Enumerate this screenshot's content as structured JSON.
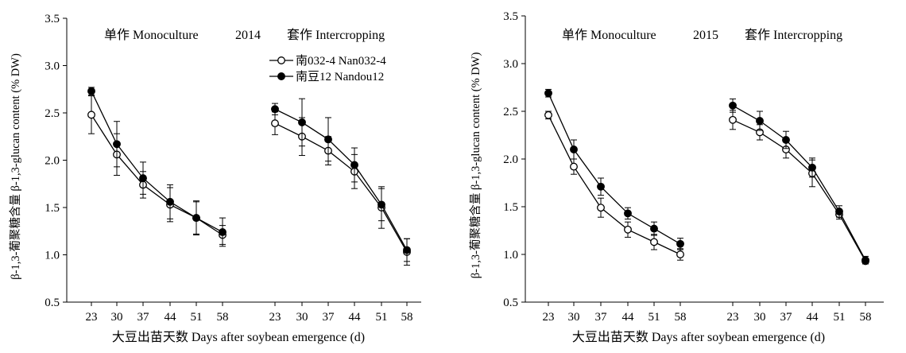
{
  "chart_data": [
    {
      "type": "line",
      "year": "2014",
      "ylabel": "β-1,3-葡聚糖含量 β-1,3-glucan content (% DW)",
      "xlabel": "大豆出苗天数 Days after soybean emergence (d)",
      "mono_label": "单作 Monoculture",
      "inter_label": "套作 Intercropping",
      "ylim": [
        0.5,
        3.5
      ],
      "yticks": [
        "0.5",
        "1.0",
        "1.5",
        "2.0",
        "2.5",
        "3.0",
        "3.5"
      ],
      "categories": [
        "23",
        "30",
        "37",
        "44",
        "51",
        "58"
      ],
      "legend": {
        "show": true,
        "position": "top-center"
      },
      "series": [
        {
          "name": "南032-4  Nan032-4",
          "marker": "open",
          "monoculture": {
            "values": [
              2.48,
              2.06,
              1.74,
              1.53,
              1.39,
              1.21
            ],
            "errors": [
              0.2,
              0.22,
              0.14,
              0.18,
              0.17,
              0.1
            ]
          },
          "intercropping": {
            "values": [
              2.39,
              2.25,
              2.1,
              1.88,
              1.5,
              1.03
            ],
            "errors": [
              0.12,
              0.2,
              0.15,
              0.18,
              0.22,
              0.14
            ]
          }
        },
        {
          "name": "南豆12  Nandou12",
          "marker": "filled",
          "monoculture": {
            "values": [
              2.73,
              2.17,
              1.81,
              1.56,
              1.39,
              1.24
            ],
            "errors": [
              0.04,
              0.24,
              0.17,
              0.18,
              0.18,
              0.15
            ]
          },
          "intercropping": {
            "values": [
              2.54,
              2.4,
              2.22,
              1.95,
              1.53,
              1.05
            ],
            "errors": [
              0.06,
              0.25,
              0.23,
              0.18,
              0.17,
              0.12
            ]
          }
        }
      ]
    },
    {
      "type": "line",
      "year": "2015",
      "ylabel": "β-1,3-葡聚糖含量 β-1,3-glucan content (% DW)",
      "xlabel": "大豆出苗天数 Days after soybean emergence (d)",
      "mono_label": "单作 Monoculture",
      "inter_label": "套作 Intercropping",
      "ylim": [
        0.5,
        3.5
      ],
      "yticks": [
        "0.5",
        "1.0",
        "1.5",
        "2.0",
        "2.5",
        "3.0",
        "3.5"
      ],
      "categories": [
        "23",
        "30",
        "37",
        "44",
        "51",
        "58"
      ],
      "legend": {
        "show": false
      },
      "series": [
        {
          "name": "南032-4  Nan032-4",
          "marker": "open",
          "monoculture": {
            "values": [
              2.46,
              1.92,
              1.49,
              1.26,
              1.13,
              1.0
            ],
            "errors": [
              0.04,
              0.08,
              0.1,
              0.08,
              0.08,
              0.06
            ]
          },
          "intercropping": {
            "values": [
              2.41,
              2.28,
              2.1,
              1.85,
              1.42,
              0.93
            ],
            "errors": [
              0.1,
              0.08,
              0.09,
              0.14,
              0.05,
              0.03
            ]
          }
        },
        {
          "name": "南豆12  Nandou12",
          "marker": "filled",
          "monoculture": {
            "values": [
              2.69,
              2.1,
              1.71,
              1.43,
              1.27,
              1.11
            ],
            "errors": [
              0.04,
              0.1,
              0.09,
              0.06,
              0.07,
              0.06
            ]
          },
          "intercropping": {
            "values": [
              2.56,
              2.4,
              2.2,
              1.91,
              1.45,
              0.94
            ],
            "errors": [
              0.07,
              0.1,
              0.09,
              0.1,
              0.06,
              0.04
            ]
          }
        }
      ]
    }
  ]
}
